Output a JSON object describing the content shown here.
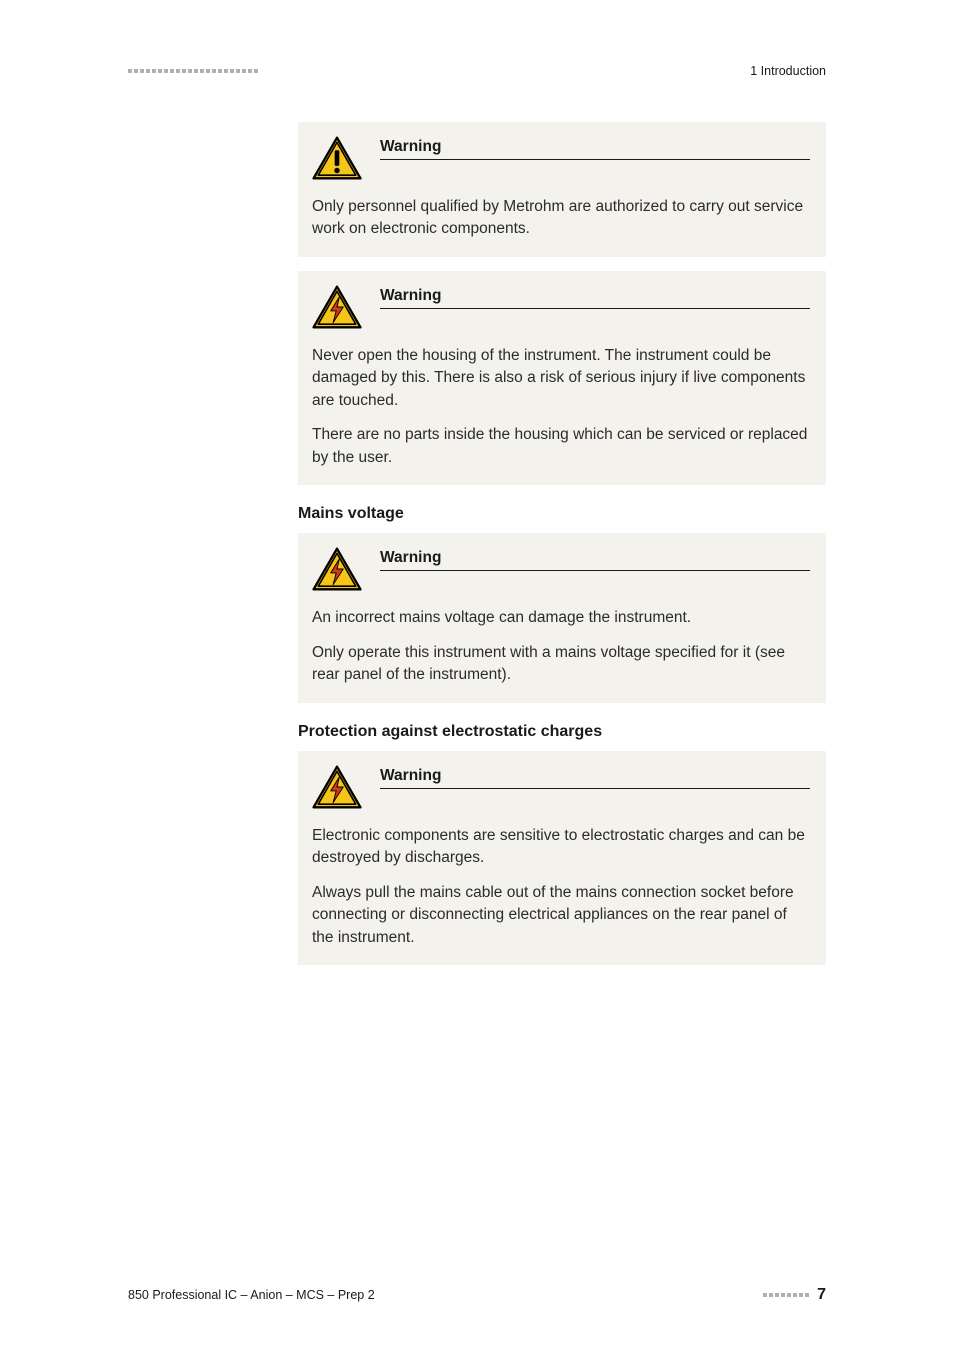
{
  "header": {
    "dash_count": 22,
    "section_label": "1 Introduction"
  },
  "blocks": [
    {
      "kind": "warning",
      "icon": "warning-exclaim",
      "title": "Warning",
      "paragraphs": [
        "Only personnel qualified by Metrohm are authorized to carry out service work on electronic components."
      ]
    },
    {
      "kind": "warning",
      "icon": "warning-electric",
      "title": "Warning",
      "paragraphs": [
        "Never open the housing of the instrument. The instrument could be damaged by this. There is also a risk of serious injury if live components are touched.",
        "There are no parts inside the housing which can be serviced or replaced by the user."
      ]
    },
    {
      "kind": "heading",
      "text": "Mains voltage"
    },
    {
      "kind": "warning",
      "icon": "warning-electric",
      "title": "Warning",
      "paragraphs": [
        "An incorrect mains voltage can damage the instrument.",
        "Only operate this instrument with a mains voltage specified for it (see rear panel of the instrument)."
      ]
    },
    {
      "kind": "heading",
      "text": "Protection against electrostatic charges"
    },
    {
      "kind": "warning",
      "icon": "warning-electric",
      "title": "Warning",
      "paragraphs": [
        "Electronic components are sensitive to electrostatic charges and can be destroyed by discharges.",
        "Always pull the mains cable out of the mains connection socket before connecting or disconnecting electrical appliances on the rear panel of the instrument."
      ]
    }
  ],
  "footer": {
    "left": "850 Professional IC – Anion – MCS – Prep 2",
    "dash_count": 8,
    "page": "7"
  },
  "colors": {
    "block_bg": "#f3f2ed",
    "icon_yellow": "#f6c519",
    "icon_black": "#000000",
    "icon_red": "#d23a1f",
    "dash_gray": "#b0b0b0"
  }
}
